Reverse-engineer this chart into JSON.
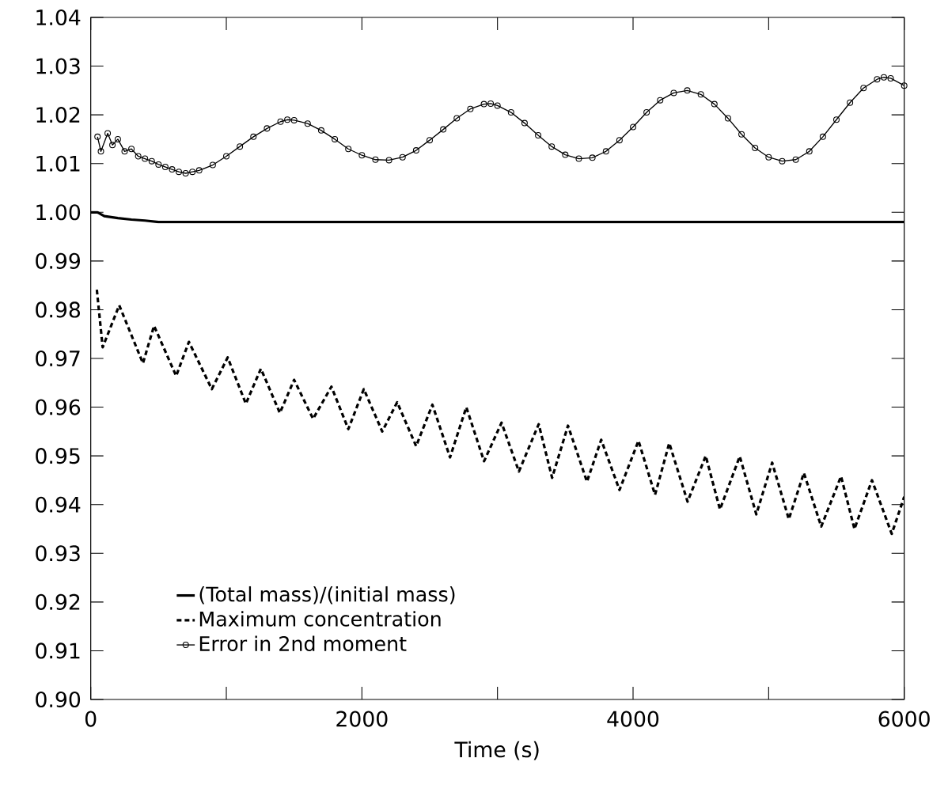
{
  "chart_data": {
    "type": "line",
    "xlabel": "Time (s)",
    "xlim": [
      0,
      6000
    ],
    "ylim": [
      0.9,
      1.04
    ],
    "xticks": [
      0,
      {
        "value": 1000,
        "label": null
      },
      2000,
      {
        "value": 3000,
        "label": null
      },
      4000,
      {
        "value": 5000,
        "label": null
      },
      6000
    ],
    "yticks": [
      {
        "value": 0.9,
        "label": "0.90"
      },
      {
        "value": 0.91,
        "label": "0.91"
      },
      {
        "value": 0.92,
        "label": "0.92"
      },
      {
        "value": 0.93,
        "label": "0.93"
      },
      {
        "value": 0.94,
        "label": "0.94"
      },
      {
        "value": 0.95,
        "label": "0.95"
      },
      {
        "value": 0.96,
        "label": "0.96"
      },
      {
        "value": 0.97,
        "label": "0.97"
      },
      {
        "value": 0.98,
        "label": "0.98"
      },
      {
        "value": 0.99,
        "label": "0.99"
      },
      {
        "value": 1.0,
        "label": "1.00"
      },
      {
        "value": 1.01,
        "label": "1.01"
      },
      {
        "value": 1.02,
        "label": "1.02"
      },
      {
        "value": 1.03,
        "label": "1.03"
      },
      {
        "value": 1.04,
        "label": "1.04"
      }
    ],
    "grid": false,
    "legend": "bottom left",
    "series": [
      {
        "name": "(Total mass)/(initial mass)",
        "color": "#000000",
        "line_style": "solid",
        "marker": "none",
        "x": [
          0,
          50,
          100,
          200,
          300,
          400,
          500,
          6000
        ],
        "values": [
          1.0,
          1.0,
          0.9992,
          0.9988,
          0.9985,
          0.9983,
          0.998,
          0.998
        ]
      },
      {
        "name": "Maximum concentration",
        "color": "#000000",
        "line_style": "dotted",
        "marker": "none",
        "x": [
          45,
          88,
          210,
          385,
          467,
          630,
          724,
          893,
          1010,
          1144,
          1255,
          1395,
          1500,
          1640,
          1775,
          1900,
          2014,
          2150,
          2260,
          2400,
          2520,
          2650,
          2770,
          2901,
          3030,
          3158,
          3304,
          3403,
          3520,
          3660,
          3765,
          3900,
          4040,
          4162,
          4267,
          4402,
          4536,
          4641,
          4787,
          4909,
          5026,
          5149,
          5260,
          5388,
          5534,
          5633,
          5762,
          5908,
          6000
        ],
        "values": [
          0.9841,
          0.9723,
          0.9809,
          0.969,
          0.9767,
          0.9664,
          0.9734,
          0.9637,
          0.9702,
          0.9607,
          0.9679,
          0.9588,
          0.9656,
          0.9576,
          0.9642,
          0.9555,
          0.9637,
          0.955,
          0.961,
          0.952,
          0.9605,
          0.9497,
          0.96,
          0.9489,
          0.9568,
          0.9468,
          0.9565,
          0.9455,
          0.9562,
          0.9447,
          0.9533,
          0.943,
          0.9531,
          0.942,
          0.9526,
          0.9406,
          0.95,
          0.939,
          0.9499,
          0.938,
          0.9486,
          0.937,
          0.9465,
          0.9355,
          0.9458,
          0.935,
          0.945,
          0.934,
          0.9416
        ]
      },
      {
        "name": "Error in 2nd moment",
        "color": "#000000",
        "line_style": "solid",
        "marker": "circle",
        "x": [
          50,
          75,
          125,
          160,
          200,
          250,
          300,
          350,
          400,
          450,
          500,
          550,
          600,
          650,
          700,
          750,
          800,
          900,
          1000,
          1100,
          1200,
          1300,
          1400,
          1450,
          1500,
          1600,
          1700,
          1800,
          1900,
          2000,
          2100,
          2200,
          2300,
          2400,
          2500,
          2600,
          2700,
          2800,
          2900,
          2950,
          3000,
          3100,
          3200,
          3300,
          3400,
          3500,
          3600,
          3700,
          3800,
          3900,
          4000,
          4100,
          4200,
          4300,
          4400,
          4500,
          4600,
          4700,
          4800,
          4900,
          5000,
          5100,
          5200,
          5300,
          5400,
          5500,
          5600,
          5700,
          5800,
          5850,
          5900,
          6000
        ],
        "values": [
          1.0155,
          1.0125,
          1.0162,
          1.0138,
          1.015,
          1.0125,
          1.013,
          1.0115,
          1.011,
          1.0105,
          1.0098,
          1.0093,
          1.0088,
          1.0083,
          1.008,
          1.0083,
          1.0086,
          1.0097,
          1.0115,
          1.0135,
          1.0155,
          1.0172,
          1.0186,
          1.019,
          1.0189,
          1.0182,
          1.0168,
          1.015,
          1.013,
          1.0117,
          1.0108,
          1.0107,
          1.0113,
          1.0127,
          1.0148,
          1.017,
          1.0193,
          1.0212,
          1.0222,
          1.0223,
          1.0219,
          1.0205,
          1.0183,
          1.0158,
          1.0135,
          1.0118,
          1.011,
          1.0112,
          1.0125,
          1.0148,
          1.0175,
          1.0205,
          1.023,
          1.0245,
          1.025,
          1.0242,
          1.0222,
          1.0193,
          1.016,
          1.0132,
          1.0113,
          1.0105,
          1.0108,
          1.0125,
          1.0155,
          1.019,
          1.0225,
          1.0255,
          1.0273,
          1.0277,
          1.0275,
          1.026
        ]
      }
    ]
  }
}
